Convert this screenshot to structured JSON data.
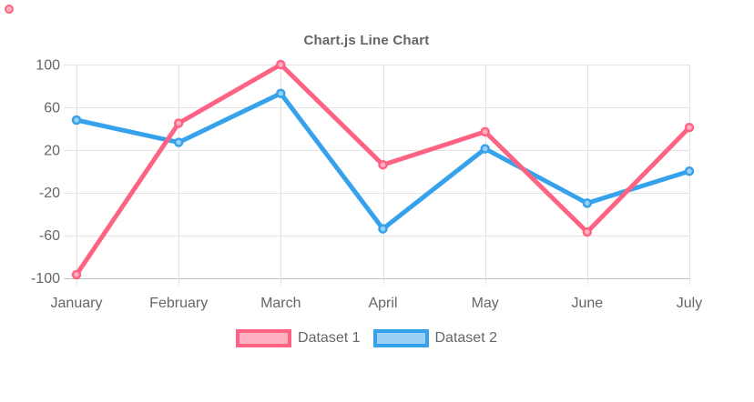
{
  "chart_data": {
    "type": "line",
    "title": "Chart.js Line Chart",
    "categories": [
      "January",
      "February",
      "March",
      "April",
      "May",
      "June",
      "July"
    ],
    "series": [
      {
        "name": "Dataset 1",
        "color": "#ff6384",
        "fill_color": "#ffb1c2",
        "values": [
          -97,
          45,
          100,
          6,
          37,
          -57,
          41
        ]
      },
      {
        "name": "Dataset 2",
        "color": "#36a2eb",
        "fill_color": "#9ad1f5",
        "values": [
          48,
          27,
          73,
          -54,
          21,
          -30,
          0
        ]
      }
    ],
    "y_ticks": [
      100,
      60,
      20,
      -20,
      -60,
      -100
    ],
    "ylim": [
      -100,
      100
    ],
    "xlabel": "",
    "ylabel": "",
    "grid": true,
    "legend_position": "bottom",
    "text_color": "#666666",
    "grid_color": "#e3e3e3",
    "axis_color": "#c2c2c2"
  },
  "artifact": {
    "corner_point_color": "#ff6384",
    "corner_point_fill": "#ffb1c2"
  }
}
